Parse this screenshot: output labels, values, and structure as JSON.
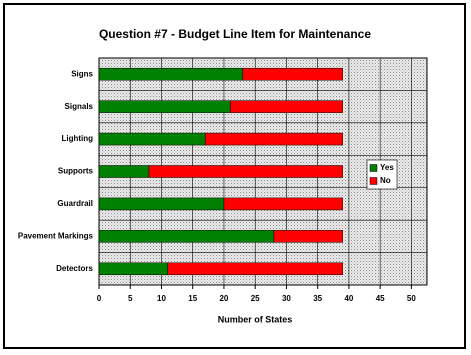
{
  "chart_data": {
    "type": "bar",
    "orientation": "horizontal",
    "stacked": true,
    "title": "Question #7 - Budget Line Item for Maintenance",
    "x_label": "Number of States",
    "categories": [
      "Signs",
      "Signals",
      "Lighting",
      "Supports",
      "Guardrail",
      "Pavement Markings",
      "Detectors"
    ],
    "series": [
      {
        "name": "Yes",
        "color": "#008000",
        "values": [
          23,
          21,
          17,
          8,
          20,
          28,
          11
        ]
      },
      {
        "name": "No",
        "color": "#ff0000",
        "values": [
          16,
          18,
          22,
          31,
          19,
          11,
          28
        ]
      }
    ],
    "xlim": [
      0,
      52.5
    ],
    "xticks": [
      0,
      5,
      10,
      15,
      20,
      25,
      30,
      35,
      40,
      45,
      50
    ],
    "grid": true,
    "legend_position": "right"
  }
}
